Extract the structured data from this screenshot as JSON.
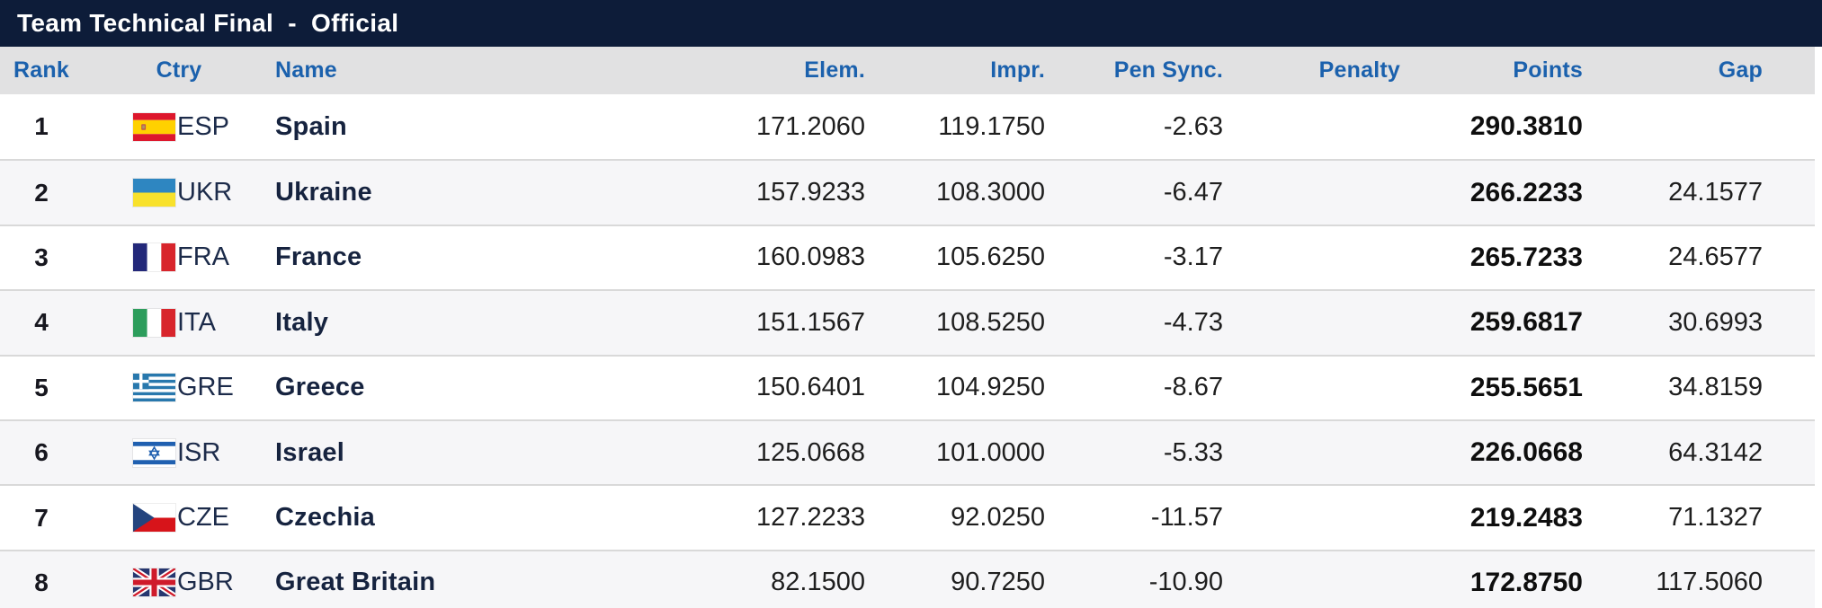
{
  "title": "Team Technical Final  -  Official",
  "colors": {
    "title_bar": "#0d1c39",
    "header_bg": "#e1e1e2",
    "header_text": "#1b61ad",
    "team_name_text": "#16233f",
    "row_alt_bg": "#f6f6f8"
  },
  "table": {
    "columns": {
      "rank": "Rank",
      "ctry": "Ctry",
      "name": "Name",
      "elem": "Elem.",
      "impr": "Impr.",
      "pen_sync": "Pen Sync.",
      "penalty": "Penalty",
      "points": "Points",
      "gap": "Gap"
    },
    "rows": [
      {
        "rank": "1",
        "code": "ESP",
        "name": "Spain",
        "elem": "171.2060",
        "impr": "119.1750",
        "pen_sync": "-2.63",
        "penalty": "",
        "points": "290.3810",
        "gap": ""
      },
      {
        "rank": "2",
        "code": "UKR",
        "name": "Ukraine",
        "elem": "157.9233",
        "impr": "108.3000",
        "pen_sync": "-6.47",
        "penalty": "",
        "points": "266.2233",
        "gap": "24.1577"
      },
      {
        "rank": "3",
        "code": "FRA",
        "name": "France",
        "elem": "160.0983",
        "impr": "105.6250",
        "pen_sync": "-3.17",
        "penalty": "",
        "points": "265.7233",
        "gap": "24.6577"
      },
      {
        "rank": "4",
        "code": "ITA",
        "name": "Italy",
        "elem": "151.1567",
        "impr": "108.5250",
        "pen_sync": "-4.73",
        "penalty": "",
        "points": "259.6817",
        "gap": "30.6993"
      },
      {
        "rank": "5",
        "code": "GRE",
        "name": "Greece",
        "elem": "150.6401",
        "impr": "104.9250",
        "pen_sync": "-8.67",
        "penalty": "",
        "points": "255.5651",
        "gap": "34.8159"
      },
      {
        "rank": "6",
        "code": "ISR",
        "name": "Israel",
        "elem": "125.0668",
        "impr": "101.0000",
        "pen_sync": "-5.33",
        "penalty": "",
        "points": "226.0668",
        "gap": "64.3142"
      },
      {
        "rank": "7",
        "code": "CZE",
        "name": "Czechia",
        "elem": "127.2233",
        "impr": "92.0250",
        "pen_sync": "-11.57",
        "penalty": "",
        "points": "219.2483",
        "gap": "71.1327"
      },
      {
        "rank": "8",
        "code": "GBR",
        "name": "Great Britain",
        "elem": "82.1500",
        "impr": "90.7250",
        "pen_sync": "-10.90",
        "penalty": "",
        "points": "172.8750",
        "gap": "117.5060"
      }
    ]
  }
}
